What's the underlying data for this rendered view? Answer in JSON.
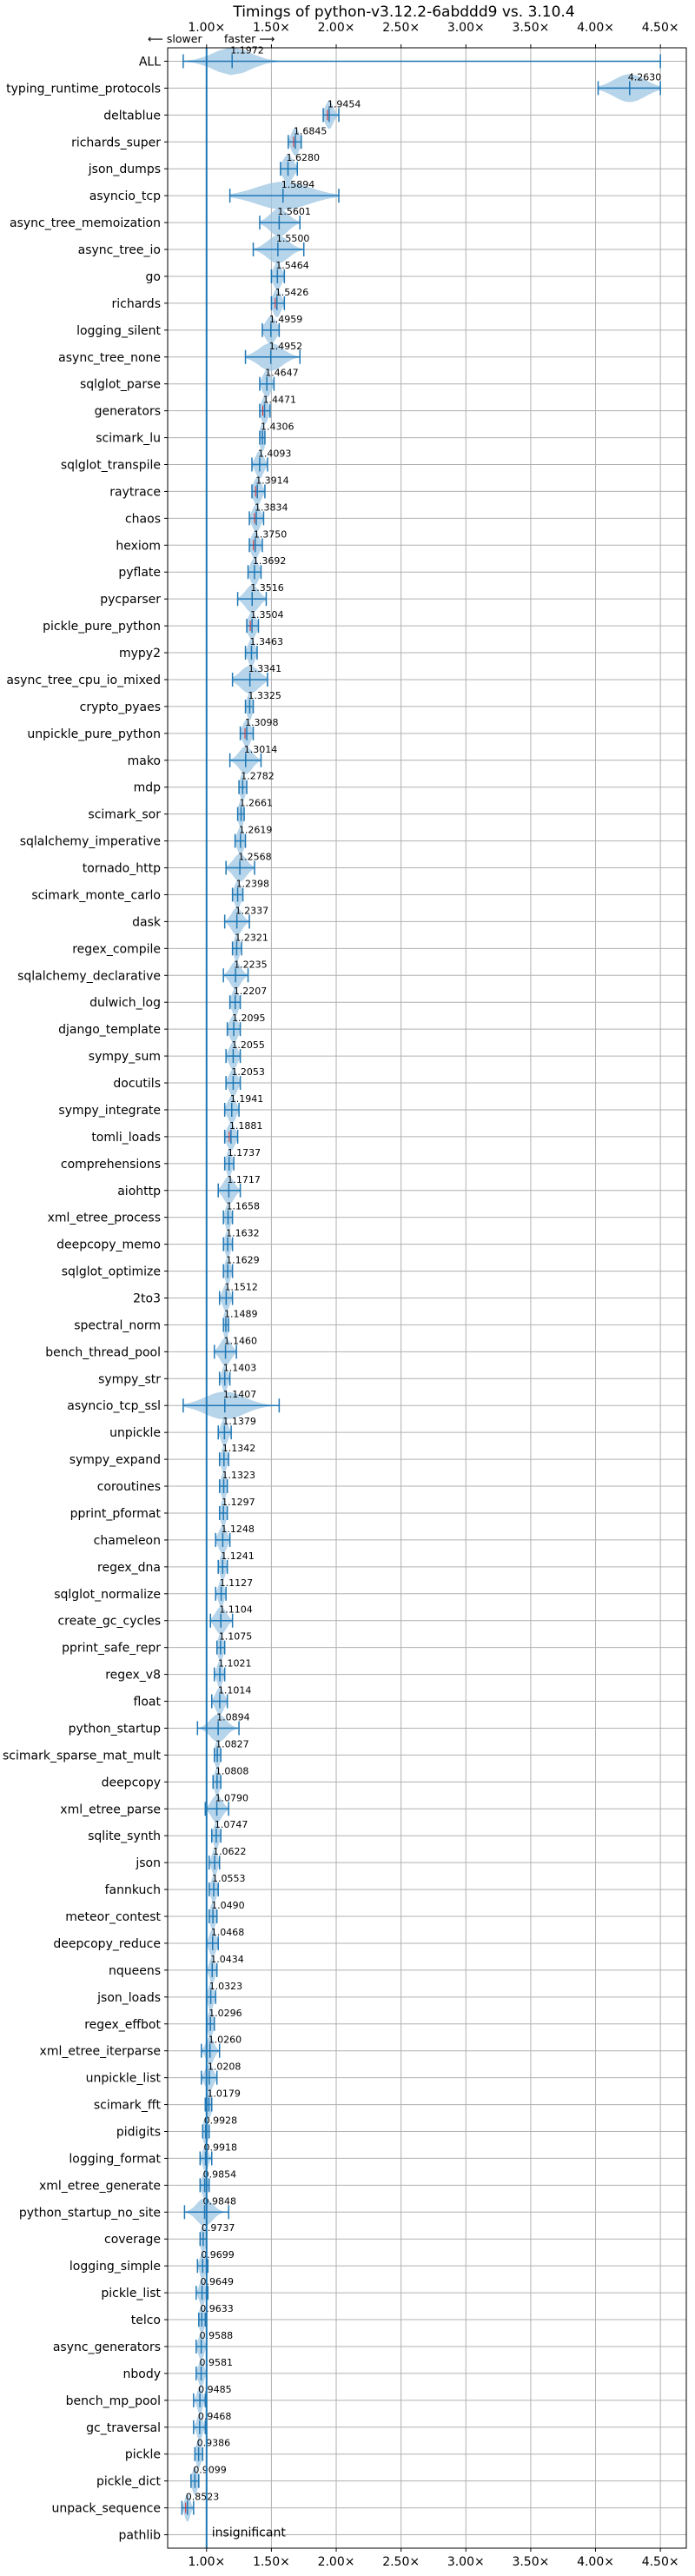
{
  "chart_data": {
    "type": "violin",
    "title": "Timings of python-v3.12.2-6abddd9 vs. 3.10.4",
    "direction_hint": {
      "slower": "⟵ slower",
      "faster": "faster ⟶"
    },
    "xlim": [
      0.7,
      4.7
    ],
    "xticks": [
      1.0,
      1.5,
      2.0,
      2.5,
      3.0,
      3.5,
      4.0,
      4.5
    ],
    "xtick_labels": [
      "1.00×",
      "1.50×",
      "2.00×",
      "2.50×",
      "3.00×",
      "3.50×",
      "4.00×",
      "4.50×"
    ],
    "reference_line": 1.0,
    "grid": true,
    "colors": {
      "violin": "#9ec5e3",
      "line": "#1f77b4",
      "significant": "#d62728",
      "grid": "#b0b0b0",
      "reference": "#1f77b4"
    },
    "insignificant_label": "insignificant",
    "benchmarks": [
      {
        "name": "ALL",
        "value": 1.1972,
        "label": "1.1972",
        "min": 0.82,
        "max": 4.5,
        "spread": 0.14,
        "sig": false
      },
      {
        "name": "typing_runtime_protocols",
        "value": 4.263,
        "label": "4.2630",
        "min": 4.02,
        "max": 4.5,
        "spread": 0.12,
        "sig": false
      },
      {
        "name": "deltablue",
        "value": 1.9454,
        "label": "1.9454",
        "min": 1.9,
        "max": 2.02,
        "spread": 0.03,
        "sig": true
      },
      {
        "name": "richards_super",
        "value": 1.6845,
        "label": "1.6845",
        "min": 1.63,
        "max": 1.73,
        "spread": 0.03,
        "sig": true
      },
      {
        "name": "json_dumps",
        "value": 1.628,
        "label": "1.6280",
        "min": 1.57,
        "max": 1.7,
        "spread": 0.04,
        "sig": false
      },
      {
        "name": "asyncio_tcp",
        "value": 1.5894,
        "label": "1.5894",
        "min": 1.18,
        "max": 2.02,
        "spread": 0.2,
        "sig": false
      },
      {
        "name": "async_tree_memoization",
        "value": 1.5601,
        "label": "1.5601",
        "min": 1.41,
        "max": 1.72,
        "spread": 0.07,
        "sig": false
      },
      {
        "name": "async_tree_io",
        "value": 1.55,
        "label": "1.5500",
        "min": 1.36,
        "max": 1.75,
        "spread": 0.08,
        "sig": false
      },
      {
        "name": "go",
        "value": 1.5464,
        "label": "1.5464",
        "min": 1.5,
        "max": 1.6,
        "spread": 0.03,
        "sig": false
      },
      {
        "name": "richards",
        "value": 1.5426,
        "label": "1.5426",
        "min": 1.5,
        "max": 1.6,
        "spread": 0.03,
        "sig": true
      },
      {
        "name": "logging_silent",
        "value": 1.4959,
        "label": "1.4959",
        "min": 1.43,
        "max": 1.56,
        "spread": 0.04,
        "sig": false
      },
      {
        "name": "async_tree_none",
        "value": 1.4952,
        "label": "1.4952",
        "min": 1.3,
        "max": 1.72,
        "spread": 0.09,
        "sig": false
      },
      {
        "name": "sqlglot_parse",
        "value": 1.4647,
        "label": "1.4647",
        "min": 1.41,
        "max": 1.52,
        "spread": 0.03,
        "sig": false
      },
      {
        "name": "generators",
        "value": 1.4471,
        "label": "1.4471",
        "min": 1.41,
        "max": 1.49,
        "spread": 0.025,
        "sig": true
      },
      {
        "name": "scimark_lu",
        "value": 1.4306,
        "label": "1.4306",
        "min": 1.41,
        "max": 1.45,
        "spread": 0.015,
        "sig": false
      },
      {
        "name": "sqlglot_transpile",
        "value": 1.4093,
        "label": "1.4093",
        "min": 1.35,
        "max": 1.47,
        "spread": 0.03,
        "sig": false
      },
      {
        "name": "raytrace",
        "value": 1.3914,
        "label": "1.3914",
        "min": 1.35,
        "max": 1.45,
        "spread": 0.03,
        "sig": true
      },
      {
        "name": "chaos",
        "value": 1.3834,
        "label": "1.3834",
        "min": 1.33,
        "max": 1.44,
        "spread": 0.03,
        "sig": true
      },
      {
        "name": "hexiom",
        "value": 1.375,
        "label": "1.3750",
        "min": 1.33,
        "max": 1.43,
        "spread": 0.03,
        "sig": true
      },
      {
        "name": "pyflate",
        "value": 1.3692,
        "label": "1.3692",
        "min": 1.32,
        "max": 1.42,
        "spread": 0.03,
        "sig": false
      },
      {
        "name": "pycparser",
        "value": 1.3516,
        "label": "1.3516",
        "min": 1.24,
        "max": 1.46,
        "spread": 0.05,
        "sig": false
      },
      {
        "name": "pickle_pure_python",
        "value": 1.3504,
        "label": "1.3504",
        "min": 1.31,
        "max": 1.4,
        "spread": 0.03,
        "sig": true
      },
      {
        "name": "mypy2",
        "value": 1.3463,
        "label": "1.3463",
        "min": 1.3,
        "max": 1.39,
        "spread": 0.025,
        "sig": false
      },
      {
        "name": "async_tree_cpu_io_mixed",
        "value": 1.3341,
        "label": "1.3341",
        "min": 1.2,
        "max": 1.47,
        "spread": 0.07,
        "sig": false
      },
      {
        "name": "crypto_pyaes",
        "value": 1.3325,
        "label": "1.3325",
        "min": 1.3,
        "max": 1.36,
        "spread": 0.02,
        "sig": false
      },
      {
        "name": "unpickle_pure_python",
        "value": 1.3098,
        "label": "1.3098",
        "min": 1.26,
        "max": 1.36,
        "spread": 0.03,
        "sig": true
      },
      {
        "name": "mako",
        "value": 1.3014,
        "label": "1.3014",
        "min": 1.18,
        "max": 1.42,
        "spread": 0.05,
        "sig": false
      },
      {
        "name": "mdp",
        "value": 1.2782,
        "label": "1.2782",
        "min": 1.25,
        "max": 1.31,
        "spread": 0.02,
        "sig": false
      },
      {
        "name": "scimark_sor",
        "value": 1.2661,
        "label": "1.2661",
        "min": 1.24,
        "max": 1.29,
        "spread": 0.015,
        "sig": false
      },
      {
        "name": "sqlalchemy_imperative",
        "value": 1.2619,
        "label": "1.2619",
        "min": 1.22,
        "max": 1.3,
        "spread": 0.025,
        "sig": false
      },
      {
        "name": "tornado_http",
        "value": 1.2568,
        "label": "1.2568",
        "min": 1.15,
        "max": 1.37,
        "spread": 0.05,
        "sig": false
      },
      {
        "name": "scimark_monte_carlo",
        "value": 1.2398,
        "label": "1.2398",
        "min": 1.2,
        "max": 1.28,
        "spread": 0.025,
        "sig": false
      },
      {
        "name": "dask",
        "value": 1.2337,
        "label": "1.2337",
        "min": 1.14,
        "max": 1.33,
        "spread": 0.04,
        "sig": false
      },
      {
        "name": "regex_compile",
        "value": 1.2321,
        "label": "1.2321",
        "min": 1.2,
        "max": 1.27,
        "spread": 0.02,
        "sig": false
      },
      {
        "name": "sqlalchemy_declarative",
        "value": 1.2235,
        "label": "1.2235",
        "min": 1.13,
        "max": 1.32,
        "spread": 0.04,
        "sig": false
      },
      {
        "name": "dulwich_log",
        "value": 1.2207,
        "label": "1.2207",
        "min": 1.18,
        "max": 1.26,
        "spread": 0.025,
        "sig": false
      },
      {
        "name": "django_template",
        "value": 1.2095,
        "label": "1.2095",
        "min": 1.16,
        "max": 1.26,
        "spread": 0.03,
        "sig": false
      },
      {
        "name": "sympy_sum",
        "value": 1.2055,
        "label": "1.2055",
        "min": 1.15,
        "max": 1.26,
        "spread": 0.03,
        "sig": false
      },
      {
        "name": "docutils",
        "value": 1.2053,
        "label": "1.2053",
        "min": 1.15,
        "max": 1.26,
        "spread": 0.03,
        "sig": false
      },
      {
        "name": "sympy_integrate",
        "value": 1.1941,
        "label": "1.1941",
        "min": 1.14,
        "max": 1.25,
        "spread": 0.03,
        "sig": false
      },
      {
        "name": "tomli_loads",
        "value": 1.1881,
        "label": "1.1881",
        "min": 1.14,
        "max": 1.24,
        "spread": 0.03,
        "sig": true
      },
      {
        "name": "comprehensions",
        "value": 1.1737,
        "label": "1.1737",
        "min": 1.14,
        "max": 1.21,
        "spread": 0.02,
        "sig": false
      },
      {
        "name": "aiohttp",
        "value": 1.1717,
        "label": "1.1717",
        "min": 1.09,
        "max": 1.26,
        "spread": 0.04,
        "sig": false
      },
      {
        "name": "xml_etree_process",
        "value": 1.1658,
        "label": "1.1658",
        "min": 1.13,
        "max": 1.2,
        "spread": 0.02,
        "sig": false
      },
      {
        "name": "deepcopy_memo",
        "value": 1.1632,
        "label": "1.1632",
        "min": 1.13,
        "max": 1.2,
        "spread": 0.02,
        "sig": false
      },
      {
        "name": "sqlglot_optimize",
        "value": 1.1629,
        "label": "1.1629",
        "min": 1.13,
        "max": 1.2,
        "spread": 0.02,
        "sig": false
      },
      {
        "name": "2to3",
        "value": 1.1512,
        "label": "1.1512",
        "min": 1.1,
        "max": 1.2,
        "spread": 0.025,
        "sig": false
      },
      {
        "name": "spectral_norm",
        "value": 1.1489,
        "label": "1.1489",
        "min": 1.13,
        "max": 1.17,
        "spread": 0.015,
        "sig": false
      },
      {
        "name": "bench_thread_pool",
        "value": 1.146,
        "label": "1.1460",
        "min": 1.06,
        "max": 1.23,
        "spread": 0.04,
        "sig": false
      },
      {
        "name": "sympy_str",
        "value": 1.1403,
        "label": "1.1403",
        "min": 1.1,
        "max": 1.18,
        "spread": 0.02,
        "sig": false
      },
      {
        "name": "asyncio_tcp_ssl",
        "value": 1.1407,
        "label": "1.1407",
        "min": 0.82,
        "max": 1.56,
        "spread": 0.15,
        "sig": false
      },
      {
        "name": "unpickle",
        "value": 1.1379,
        "label": "1.1379",
        "min": 1.09,
        "max": 1.19,
        "spread": 0.025,
        "sig": false
      },
      {
        "name": "sympy_expand",
        "value": 1.1342,
        "label": "1.1342",
        "min": 1.1,
        "max": 1.17,
        "spread": 0.02,
        "sig": false
      },
      {
        "name": "coroutines",
        "value": 1.1323,
        "label": "1.1323",
        "min": 1.1,
        "max": 1.16,
        "spread": 0.02,
        "sig": false
      },
      {
        "name": "pprint_pformat",
        "value": 1.1297,
        "label": "1.1297",
        "min": 1.1,
        "max": 1.16,
        "spread": 0.02,
        "sig": false
      },
      {
        "name": "chameleon",
        "value": 1.1248,
        "label": "1.1248",
        "min": 1.07,
        "max": 1.18,
        "spread": 0.03,
        "sig": false
      },
      {
        "name": "regex_dna",
        "value": 1.1241,
        "label": "1.1241",
        "min": 1.09,
        "max": 1.16,
        "spread": 0.02,
        "sig": false
      },
      {
        "name": "sqlglot_normalize",
        "value": 1.1127,
        "label": "1.1127",
        "min": 1.07,
        "max": 1.15,
        "spread": 0.02,
        "sig": false
      },
      {
        "name": "create_gc_cycles",
        "value": 1.1104,
        "label": "1.1104",
        "min": 1.03,
        "max": 1.2,
        "spread": 0.04,
        "sig": false
      },
      {
        "name": "pprint_safe_repr",
        "value": 1.1075,
        "label": "1.1075",
        "min": 1.08,
        "max": 1.14,
        "spread": 0.02,
        "sig": false
      },
      {
        "name": "regex_v8",
        "value": 1.1021,
        "label": "1.1021",
        "min": 1.06,
        "max": 1.14,
        "spread": 0.02,
        "sig": false
      },
      {
        "name": "float",
        "value": 1.1014,
        "label": "1.1014",
        "min": 1.04,
        "max": 1.16,
        "spread": 0.03,
        "sig": false
      },
      {
        "name": "python_startup",
        "value": 1.0894,
        "label": "1.0894",
        "min": 0.93,
        "max": 1.25,
        "spread": 0.06,
        "sig": false
      },
      {
        "name": "scimark_sparse_mat_mult",
        "value": 1.0827,
        "label": "1.0827",
        "min": 1.06,
        "max": 1.11,
        "spread": 0.015,
        "sig": false
      },
      {
        "name": "deepcopy",
        "value": 1.0808,
        "label": "1.0808",
        "min": 1.05,
        "max": 1.11,
        "spread": 0.02,
        "sig": false
      },
      {
        "name": "xml_etree_parse",
        "value": 1.079,
        "label": "1.0790",
        "min": 0.99,
        "max": 1.17,
        "spread": 0.04,
        "sig": false
      },
      {
        "name": "sqlite_synth",
        "value": 1.0747,
        "label": "1.0747",
        "min": 1.04,
        "max": 1.11,
        "spread": 0.02,
        "sig": false
      },
      {
        "name": "json",
        "value": 1.0622,
        "label": "1.0622",
        "min": 1.02,
        "max": 1.1,
        "spread": 0.02,
        "sig": false
      },
      {
        "name": "fannkuch",
        "value": 1.0553,
        "label": "1.0553",
        "min": 1.02,
        "max": 1.09,
        "spread": 0.02,
        "sig": false
      },
      {
        "name": "meteor_contest",
        "value": 1.049,
        "label": "1.0490",
        "min": 1.02,
        "max": 1.08,
        "spread": 0.015,
        "sig": false
      },
      {
        "name": "deepcopy_reduce",
        "value": 1.0468,
        "label": "1.0468",
        "min": 1.0,
        "max": 1.09,
        "spread": 0.025,
        "sig": false
      },
      {
        "name": "nqueens",
        "value": 1.0434,
        "label": "1.0434",
        "min": 1.0,
        "max": 1.08,
        "spread": 0.02,
        "sig": false
      },
      {
        "name": "json_loads",
        "value": 1.0323,
        "label": "1.0323",
        "min": 1.0,
        "max": 1.07,
        "spread": 0.02,
        "sig": false
      },
      {
        "name": "regex_effbot",
        "value": 1.0296,
        "label": "1.0296",
        "min": 1.0,
        "max": 1.06,
        "spread": 0.015,
        "sig": false
      },
      {
        "name": "xml_etree_iterparse",
        "value": 1.026,
        "label": "1.0260",
        "min": 0.96,
        "max": 1.1,
        "spread": 0.03,
        "sig": false
      },
      {
        "name": "unpickle_list",
        "value": 1.0208,
        "label": "1.0208",
        "min": 0.96,
        "max": 1.08,
        "spread": 0.03,
        "sig": false
      },
      {
        "name": "scimark_fft",
        "value": 1.0179,
        "label": "1.0179",
        "min": 0.99,
        "max": 1.04,
        "spread": 0.015,
        "sig": false
      },
      {
        "name": "pidigits",
        "value": 0.9928,
        "label": "0.9928",
        "min": 0.97,
        "max": 1.02,
        "spread": 0.015,
        "sig": false
      },
      {
        "name": "logging_format",
        "value": 0.9918,
        "label": "0.9918",
        "min": 0.95,
        "max": 1.04,
        "spread": 0.02,
        "sig": false
      },
      {
        "name": "xml_etree_generate",
        "value": 0.9854,
        "label": "0.9854",
        "min": 0.95,
        "max": 1.02,
        "spread": 0.02,
        "sig": false
      },
      {
        "name": "python_startup_no_site",
        "value": 0.9848,
        "label": "0.9848",
        "min": 0.83,
        "max": 1.17,
        "spread": 0.06,
        "sig": false
      },
      {
        "name": "coverage",
        "value": 0.9737,
        "label": "0.9737",
        "min": 0.95,
        "max": 1.0,
        "spread": 0.015,
        "sig": false
      },
      {
        "name": "logging_simple",
        "value": 0.9699,
        "label": "0.9699",
        "min": 0.93,
        "max": 1.01,
        "spread": 0.02,
        "sig": false
      },
      {
        "name": "pickle_list",
        "value": 0.9649,
        "label": "0.9649",
        "min": 0.92,
        "max": 1.01,
        "spread": 0.02,
        "sig": false
      },
      {
        "name": "telco",
        "value": 0.9633,
        "label": "0.9633",
        "min": 0.94,
        "max": 0.99,
        "spread": 0.015,
        "sig": false
      },
      {
        "name": "async_generators",
        "value": 0.9588,
        "label": "0.9588",
        "min": 0.92,
        "max": 1.0,
        "spread": 0.02,
        "sig": false
      },
      {
        "name": "nbody",
        "value": 0.9581,
        "label": "0.9581",
        "min": 0.92,
        "max": 1.0,
        "spread": 0.02,
        "sig": false
      },
      {
        "name": "bench_mp_pool",
        "value": 0.9485,
        "label": "0.9485",
        "min": 0.9,
        "max": 0.99,
        "spread": 0.02,
        "sig": false
      },
      {
        "name": "gc_traversal",
        "value": 0.9468,
        "label": "0.9468",
        "min": 0.9,
        "max": 0.99,
        "spread": 0.02,
        "sig": false
      },
      {
        "name": "pickle",
        "value": 0.9386,
        "label": "0.9386",
        "min": 0.91,
        "max": 0.97,
        "spread": 0.015,
        "sig": false
      },
      {
        "name": "pickle_dict",
        "value": 0.9099,
        "label": "0.9099",
        "min": 0.88,
        "max": 0.94,
        "spread": 0.015,
        "sig": false
      },
      {
        "name": "unpack_sequence",
        "value": 0.8523,
        "label": "0.8523",
        "min": 0.81,
        "max": 0.9,
        "spread": 0.02,
        "sig": true
      },
      {
        "name": "pathlib",
        "value": null,
        "label": "",
        "min": null,
        "max": null,
        "spread": 0,
        "sig": false
      }
    ]
  }
}
